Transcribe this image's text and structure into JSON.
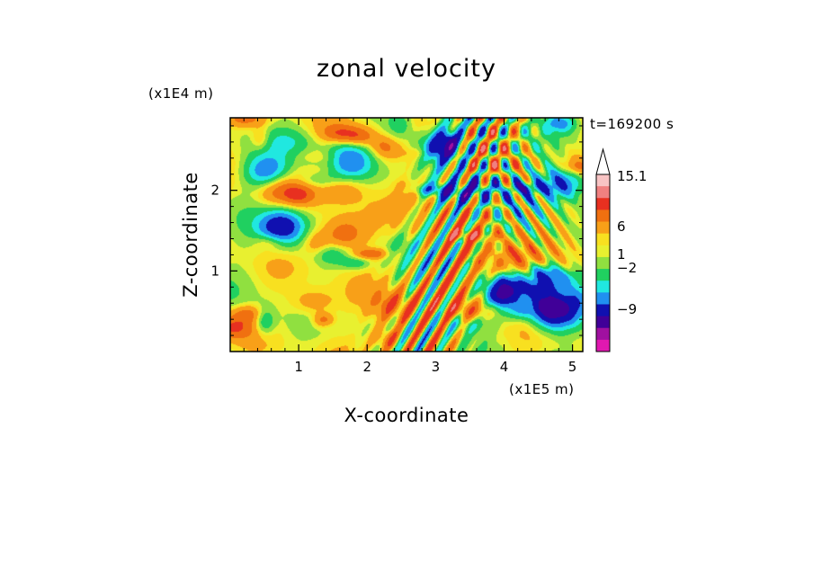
{
  "chart_data": {
    "type": "heatmap",
    "title": "zonal velocity",
    "xlabel": "X-coordinate",
    "ylabel": "Z-coordinate",
    "x_scale_label": "(x1E5 m)",
    "y_scale_label": "(x1E4 m)",
    "time_label": "t=169200 s",
    "xlim": [
      0,
      5.15
    ],
    "ylim": [
      0,
      2.9
    ],
    "x_ticks": [
      "1",
      "2",
      "3",
      "4",
      "5"
    ],
    "y_ticks": [
      "1",
      "2"
    ],
    "x_tick_values": [
      1,
      2,
      3,
      4,
      5
    ],
    "y_tick_values": [
      1,
      2
    ],
    "colorbar": {
      "labels": [
        "15.1",
        "6",
        "1",
        "−2",
        "−9"
      ],
      "label_values": [
        15.1,
        6,
        1,
        -2,
        -9
      ],
      "colors_top_to_bottom": [
        "#f8c4c4",
        "#f08080",
        "#e83020",
        "#f07010",
        "#f8a018",
        "#f8e020",
        "#e8f030",
        "#90e040",
        "#20d060",
        "#20e8e0",
        "#2090f0",
        "#1010b0",
        "#400098",
        "#a010a0",
        "#e018b0"
      ],
      "extend_max": true
    },
    "features": [
      {
        "kind": "max",
        "x": 0.65,
        "z": 2.05,
        "u": 6
      },
      {
        "kind": "max",
        "x": 1.65,
        "z": 1.45,
        "u": 5
      },
      {
        "kind": "max",
        "x": 2.35,
        "z": 0.55,
        "u": 4
      },
      {
        "kind": "max",
        "x": 4.15,
        "z": 1.05,
        "u": 5
      },
      {
        "kind": "min",
        "x": 0.55,
        "z": 2.2,
        "u": -8
      },
      {
        "kind": "min",
        "x": 1.7,
        "z": 2.35,
        "u": -7
      },
      {
        "kind": "min",
        "x": 0.75,
        "z": 1.55,
        "u": -9
      },
      {
        "kind": "min",
        "x": 3.1,
        "z": 2.55,
        "u": -9
      },
      {
        "kind": "min",
        "x": 4.75,
        "z": 0.5,
        "u": -10
      },
      {
        "kind": "min",
        "x": 4.85,
        "z": 2.1,
        "u": -8
      },
      {
        "kind": "min",
        "x": 4.05,
        "z": 0.8,
        "u": -8
      }
    ]
  }
}
